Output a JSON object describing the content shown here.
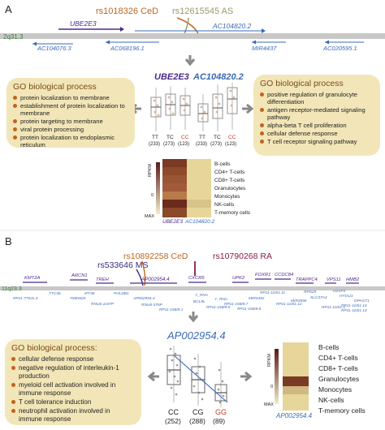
{
  "panel_a": {
    "label": "A",
    "snp1": "rs1018326 CeD",
    "snp2": "rs12615545 AS",
    "locus": "2q31.3",
    "genes_above": [
      "UBE2E3",
      "AC104820.2"
    ],
    "genes_below": [
      "AC104076.3",
      "AC068196.1",
      "MIR4437",
      "AC020595.1"
    ],
    "plot_title_1": "UBE2E3",
    "plot_title_2": "AC104820.2",
    "genotypes": [
      {
        "label": "TT",
        "count": "(233)"
      },
      {
        "label": "TC",
        "count": "(273)"
      },
      {
        "label": "CC",
        "count": "(123)"
      },
      {
        "label": "TT",
        "count": "(233)"
      },
      {
        "label": "TC",
        "count": "(273)"
      },
      {
        "label": "CC",
        "count": "(123)"
      }
    ],
    "go_left": {
      "title": "GO biological process",
      "items": [
        "protein localization to membrane",
        "establishment of protein localization to membrane",
        "protein targeting to membrane",
        "viral protein processing",
        "protein localization to endoplasmic reticulum"
      ]
    },
    "go_right": {
      "title": "GO biological process",
      "items": [
        "positive regulation of granulocyte differentiation",
        "antigen receptor-mediated signaling pathway",
        "alpha-beta T cell proliferation",
        "cellular defense response",
        "T cell receptor signaling pathway"
      ]
    },
    "heatmap": {
      "ylabel": "RPKM",
      "scale_max": "MAX",
      "scale_zero": "0",
      "columns": [
        "UBE2E3",
        "AC104820.2"
      ],
      "rows": [
        "B-cells",
        "CD4+ T-cells",
        "CD8+ T-cells",
        "Granulocytes",
        "Monocytes",
        "NK-cells",
        "T-memory cells"
      ]
    }
  },
  "panel_b": {
    "label": "B",
    "snp1": "rs10892258 CeD",
    "snp2": "rs533646 MS",
    "snp3": "rs10790268 RA",
    "locus": "11q23.3",
    "genes_above": [
      "KMT2A",
      "ARCN1",
      "TREH",
      "AP002954.4",
      "CXCR5",
      "UPK2",
      "FOXR1",
      "CCDC84",
      "TRAPPC4",
      "VPS11",
      "HMB2"
    ],
    "genes_below": [
      "TTC36",
      "IFT46",
      "TMEM25",
      "PHLDB1",
      "RNU6-1157P",
      "AP002954.3",
      "RNU6-376P",
      "Y_RNA",
      "BCL9L",
      "Y_RNA",
      "MIR4492",
      "RP11-110I1.11",
      "RP11-158I9.7",
      "RPS25",
      "SLC37A4",
      "HYOU1",
      "DPAGT1",
      "H2AFX",
      "RP11-770J1.3",
      "RP11-158I9.5",
      "RP11-158I9.8",
      "RP11-110I1.12",
      "MIR3656",
      "RP11-158I9.1",
      "RP11-110I1.14",
      "RP11-110I1.13",
      "RP11-110I1.4"
    ],
    "plot_title": "AP002954.4",
    "genotypes": [
      {
        "label": "CC",
        "count": "(252)"
      },
      {
        "label": "CG",
        "count": "(288)"
      },
      {
        "label": "GG",
        "count": "(89)"
      }
    ],
    "go": {
      "title": "GO biological process:",
      "items": [
        "cellular defense response",
        "negative regulation of interleukin-1 production",
        "myeloid cell activation involved in immune response",
        "T cell tolerance induction",
        "neutrophil activation involved in immune response"
      ]
    },
    "heatmap": {
      "ylabel": "RPKM",
      "scale_max": "MAX",
      "scale_zero": "0",
      "columns": [
        "AP002954.4"
      ],
      "rows": [
        "B-cells",
        "CD4+ T-cells",
        "CD8+ T-cells",
        "Granulocytes",
        "Monocytes",
        "NK-cells",
        "T-memory cells"
      ]
    }
  },
  "colors": {
    "ced": "#c0651e",
    "as": "#9c9a6a",
    "ms": "#3b2a7a",
    "ra": "#8a1a4a",
    "gene_purple": "#4a2a8a",
    "gene_blue": "#3a6ab8",
    "go_box": "#f2e6b8",
    "heat_dark": "#5a1a1a",
    "heat_mid": "#a35a3a",
    "heat_light": "#e6d69a"
  }
}
